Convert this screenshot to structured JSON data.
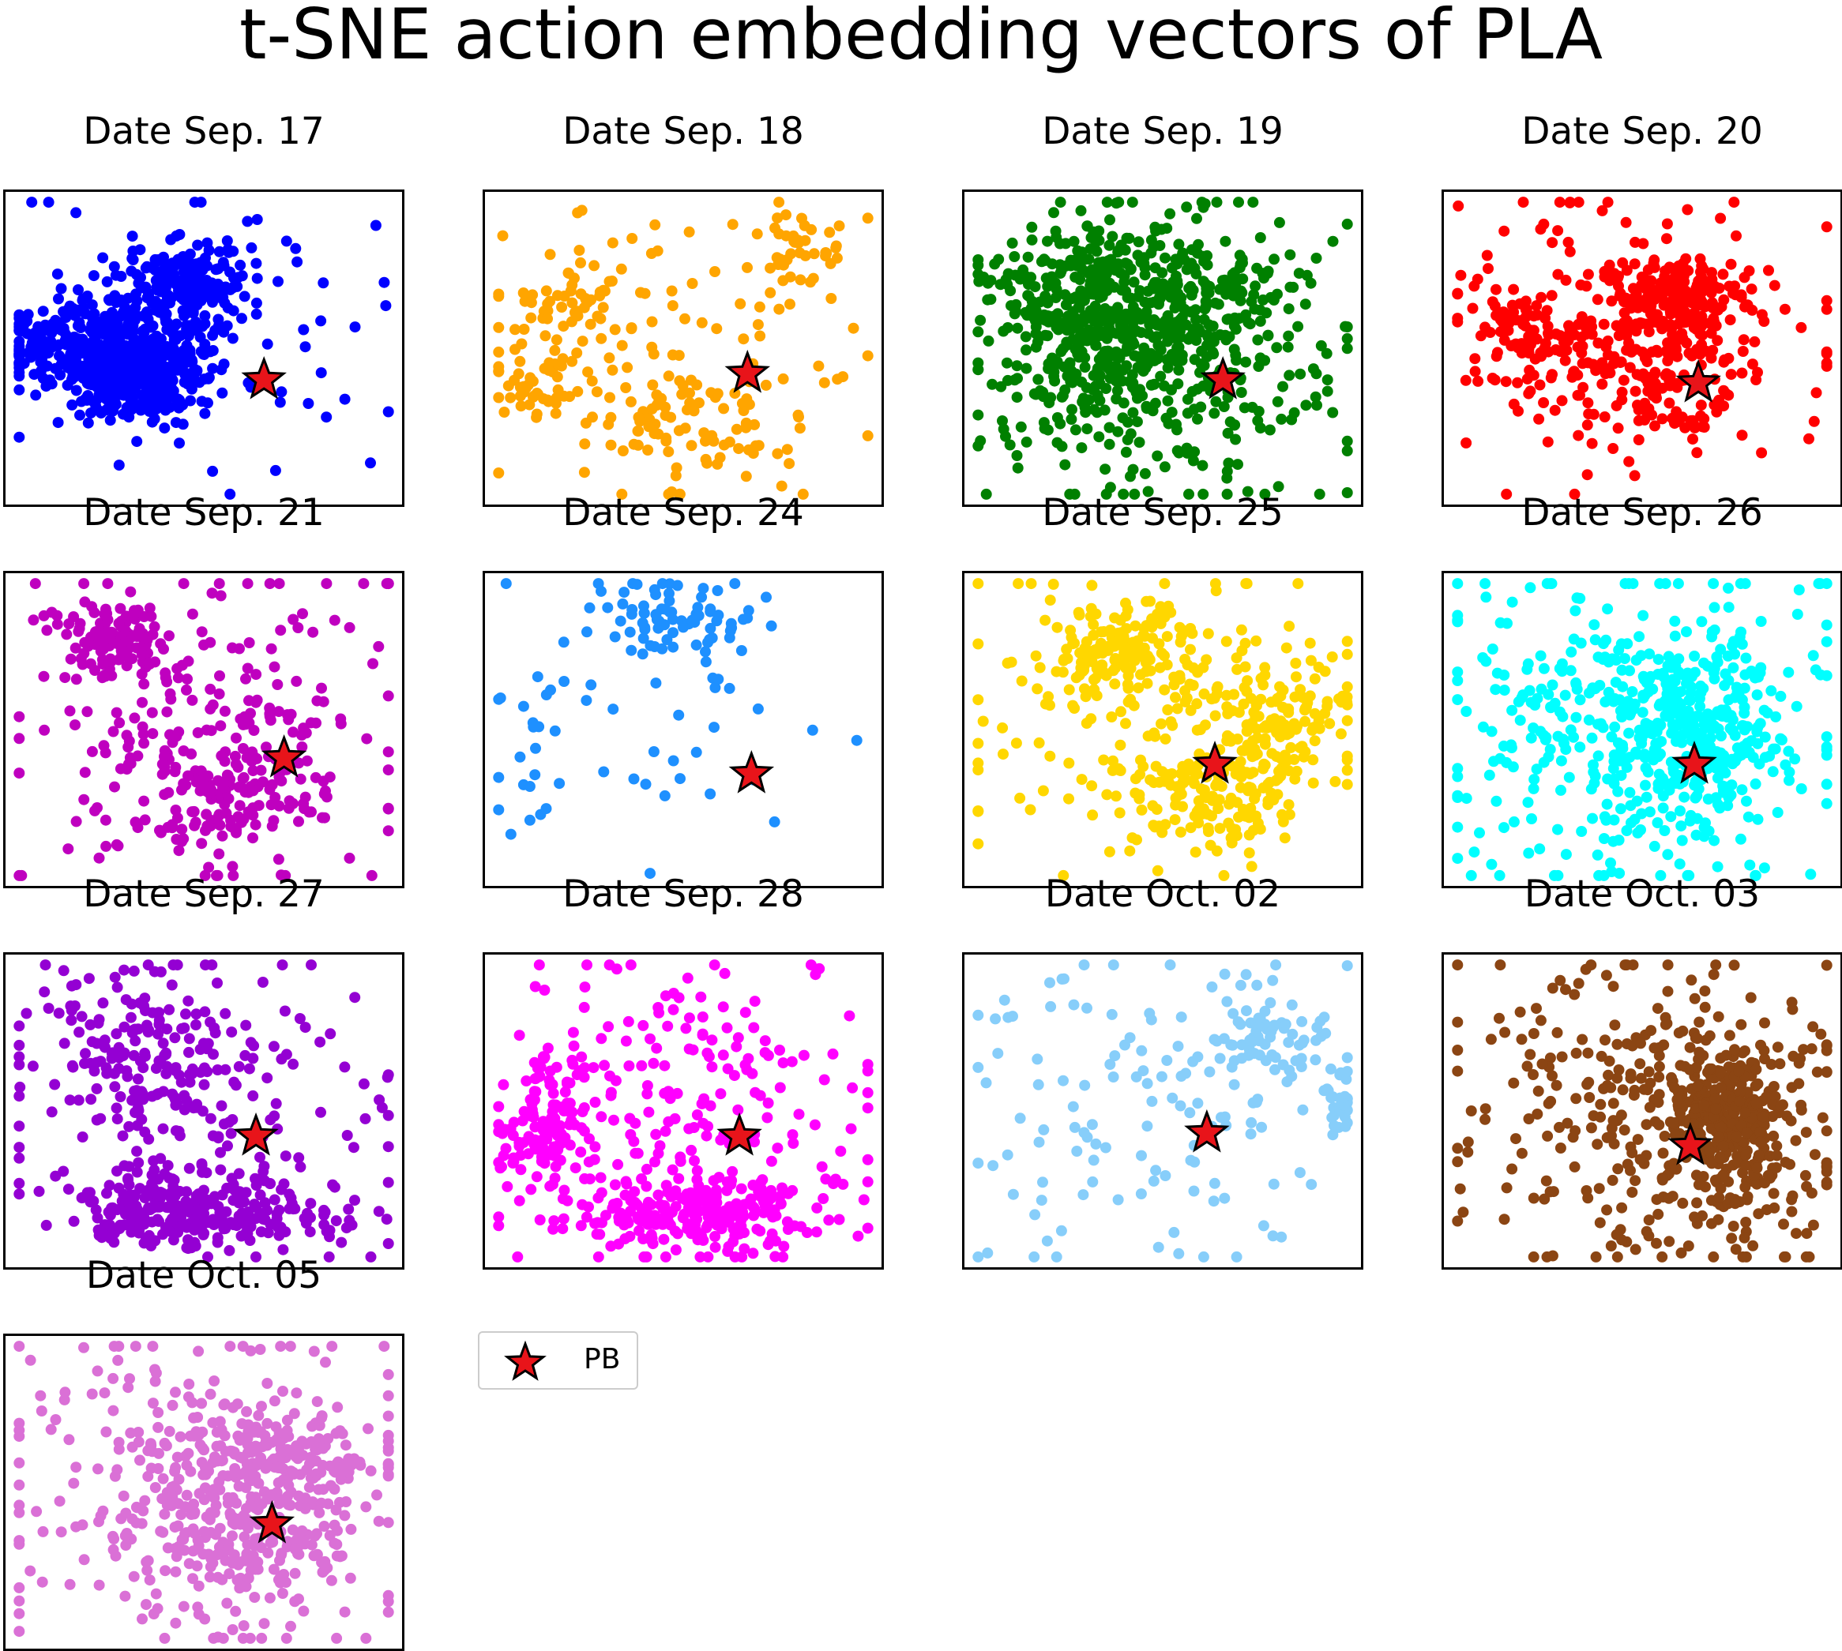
{
  "chart_data": {
    "type": "scatter",
    "title": "t-SNE action embedding vectors of PLA",
    "legend": {
      "position": "separate-box",
      "entries": [
        {
          "label": "PB",
          "marker": "star",
          "color": "#e8141a",
          "edgecolor": "#000000"
        }
      ]
    },
    "axes_visible": false,
    "grid": false,
    "panels": [
      {
        "title": "Date Sep. 17",
        "color": "#0000ff",
        "approx_points": 900,
        "clusters": [
          {
            "x": 0.33,
            "y": 0.57,
            "sx": 0.09,
            "sy": 0.08,
            "w": 0.45
          },
          {
            "x": 0.2,
            "y": 0.47,
            "sx": 0.1,
            "sy": 0.08,
            "w": 0.25
          },
          {
            "x": 0.46,
            "y": 0.3,
            "sx": 0.08,
            "sy": 0.07,
            "w": 0.2
          },
          {
            "x": 0.5,
            "y": 0.5,
            "sx": 0.25,
            "sy": 0.22,
            "w": 0.1
          }
        ],
        "pb": {
          "x": 0.65,
          "y": 0.6
        }
      },
      {
        "title": "Date Sep. 18",
        "color": "#ffa500",
        "approx_points": 300,
        "clusters": [
          {
            "x": 0.22,
            "y": 0.33,
            "sx": 0.06,
            "sy": 0.06,
            "w": 0.15
          },
          {
            "x": 0.14,
            "y": 0.62,
            "sx": 0.06,
            "sy": 0.07,
            "w": 0.15
          },
          {
            "x": 0.8,
            "y": 0.18,
            "sx": 0.06,
            "sy": 0.06,
            "w": 0.15
          },
          {
            "x": 0.5,
            "y": 0.75,
            "sx": 0.1,
            "sy": 0.1,
            "w": 0.2
          },
          {
            "x": 0.5,
            "y": 0.5,
            "sx": 0.25,
            "sy": 0.25,
            "w": 0.35
          }
        ],
        "pb": {
          "x": 0.66,
          "y": 0.58
        }
      },
      {
        "title": "Date Sep. 19",
        "color": "#008000",
        "approx_points": 800,
        "clusters": [
          {
            "x": 0.3,
            "y": 0.4,
            "sx": 0.12,
            "sy": 0.14,
            "w": 0.3
          },
          {
            "x": 0.55,
            "y": 0.35,
            "sx": 0.15,
            "sy": 0.15,
            "w": 0.3
          },
          {
            "x": 0.5,
            "y": 0.55,
            "sx": 0.22,
            "sy": 0.22,
            "w": 0.4
          }
        ],
        "pb": {
          "x": 0.65,
          "y": 0.6
        }
      },
      {
        "title": "Date Sep. 20",
        "color": "#ff0000",
        "approx_points": 550,
        "clusters": [
          {
            "x": 0.58,
            "y": 0.35,
            "sx": 0.08,
            "sy": 0.07,
            "w": 0.35
          },
          {
            "x": 0.25,
            "y": 0.45,
            "sx": 0.1,
            "sy": 0.08,
            "w": 0.2
          },
          {
            "x": 0.55,
            "y": 0.6,
            "sx": 0.12,
            "sy": 0.1,
            "w": 0.2
          },
          {
            "x": 0.5,
            "y": 0.45,
            "sx": 0.25,
            "sy": 0.25,
            "w": 0.25
          }
        ],
        "pb": {
          "x": 0.64,
          "y": 0.61
        }
      },
      {
        "title": "Date Sep. 21",
        "color": "#bf00bf",
        "approx_points": 450,
        "clusters": [
          {
            "x": 0.28,
            "y": 0.22,
            "sx": 0.06,
            "sy": 0.06,
            "w": 0.25
          },
          {
            "x": 0.58,
            "y": 0.7,
            "sx": 0.12,
            "sy": 0.1,
            "w": 0.25
          },
          {
            "x": 0.5,
            "y": 0.5,
            "sx": 0.25,
            "sy": 0.25,
            "w": 0.5
          }
        ],
        "pb": {
          "x": 0.7,
          "y": 0.59
        }
      },
      {
        "title": "Date Sep. 24",
        "color": "#1e90ff",
        "approx_points": 130,
        "clusters": [
          {
            "x": 0.45,
            "y": 0.15,
            "sx": 0.1,
            "sy": 0.07,
            "w": 0.55
          },
          {
            "x": 0.12,
            "y": 0.55,
            "sx": 0.05,
            "sy": 0.12,
            "w": 0.2
          },
          {
            "x": 0.5,
            "y": 0.5,
            "sx": 0.25,
            "sy": 0.25,
            "w": 0.25
          }
        ],
        "pb": {
          "x": 0.67,
          "y": 0.64
        }
      },
      {
        "title": "Date Sep. 25",
        "color": "#ffd700",
        "approx_points": 550,
        "clusters": [
          {
            "x": 0.4,
            "y": 0.25,
            "sx": 0.1,
            "sy": 0.08,
            "w": 0.25
          },
          {
            "x": 0.6,
            "y": 0.7,
            "sx": 0.1,
            "sy": 0.1,
            "w": 0.25
          },
          {
            "x": 0.78,
            "y": 0.45,
            "sx": 0.08,
            "sy": 0.12,
            "w": 0.2
          },
          {
            "x": 0.5,
            "y": 0.5,
            "sx": 0.25,
            "sy": 0.25,
            "w": 0.3
          }
        ],
        "pb": {
          "x": 0.63,
          "y": 0.61
        }
      },
      {
        "title": "Date Sep. 26",
        "color": "#00ffff",
        "approx_points": 600,
        "clusters": [
          {
            "x": 0.62,
            "y": 0.5,
            "sx": 0.12,
            "sy": 0.14,
            "w": 0.45
          },
          {
            "x": 0.5,
            "y": 0.5,
            "sx": 0.25,
            "sy": 0.25,
            "w": 0.55
          }
        ],
        "pb": {
          "x": 0.63,
          "y": 0.61
        }
      },
      {
        "title": "Date Sep. 27",
        "color": "#9400d3",
        "approx_points": 550,
        "clusters": [
          {
            "x": 0.5,
            "y": 0.82,
            "sx": 0.16,
            "sy": 0.06,
            "w": 0.45
          },
          {
            "x": 0.35,
            "y": 0.3,
            "sx": 0.12,
            "sy": 0.15,
            "w": 0.25
          },
          {
            "x": 0.5,
            "y": 0.5,
            "sx": 0.25,
            "sy": 0.25,
            "w": 0.3
          }
        ],
        "pb": {
          "x": 0.63,
          "y": 0.58
        }
      },
      {
        "title": "Date Sep. 28",
        "color": "#ff00ff",
        "approx_points": 550,
        "clusters": [
          {
            "x": 0.55,
            "y": 0.82,
            "sx": 0.14,
            "sy": 0.06,
            "w": 0.4
          },
          {
            "x": 0.15,
            "y": 0.55,
            "sx": 0.06,
            "sy": 0.12,
            "w": 0.2
          },
          {
            "x": 0.5,
            "y": 0.5,
            "sx": 0.25,
            "sy": 0.25,
            "w": 0.4
          }
        ],
        "pb": {
          "x": 0.64,
          "y": 0.58
        }
      },
      {
        "title": "Date Oct. 02",
        "color": "#87cefa",
        "approx_points": 220,
        "clusters": [
          {
            "x": 0.75,
            "y": 0.28,
            "sx": 0.08,
            "sy": 0.06,
            "w": 0.25
          },
          {
            "x": 0.94,
            "y": 0.48,
            "sx": 0.03,
            "sy": 0.06,
            "w": 0.15
          },
          {
            "x": 0.5,
            "y": 0.5,
            "sx": 0.25,
            "sy": 0.25,
            "w": 0.6
          }
        ],
        "pb": {
          "x": 0.61,
          "y": 0.57
        }
      },
      {
        "title": "Date Oct. 03",
        "color": "#8b4513",
        "approx_points": 600,
        "clusters": [
          {
            "x": 0.72,
            "y": 0.55,
            "sx": 0.09,
            "sy": 0.14,
            "w": 0.55
          },
          {
            "x": 0.5,
            "y": 0.5,
            "sx": 0.25,
            "sy": 0.25,
            "w": 0.45
          }
        ],
        "pb": {
          "x": 0.62,
          "y": 0.61
        }
      },
      {
        "title": "Date Oct. 05",
        "color": "#da70d6",
        "approx_points": 600,
        "clusters": [
          {
            "x": 0.68,
            "y": 0.4,
            "sx": 0.12,
            "sy": 0.1,
            "w": 0.3
          },
          {
            "x": 0.58,
            "y": 0.62,
            "sx": 0.15,
            "sy": 0.12,
            "w": 0.3
          },
          {
            "x": 0.5,
            "y": 0.5,
            "sx": 0.26,
            "sy": 0.25,
            "w": 0.4
          }
        ],
        "pb": {
          "x": 0.67,
          "y": 0.6
        }
      }
    ]
  }
}
